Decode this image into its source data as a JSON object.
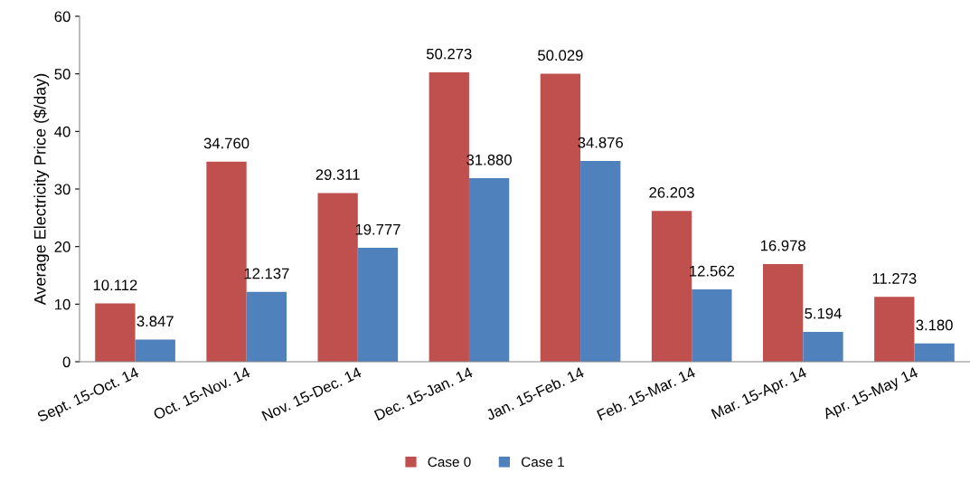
{
  "chart_data": {
    "type": "bar",
    "ylabel": "Average Electricity Price ($/day)",
    "categories": [
      "Sept. 15-Oct. 14",
      "Oct. 15-Nov. 14",
      "Nov. 15-Dec. 14",
      "Dec. 15-Jan. 14",
      "Jan. 15-Feb. 14",
      "Feb. 15-Mar. 14",
      "Mar. 15-Apr. 14",
      "Apr. 15-May 14"
    ],
    "series": [
      {
        "name": "Case 0",
        "color": "#c0504d",
        "values": [
          10.112,
          34.76,
          29.311,
          50.273,
          50.029,
          26.203,
          16.978,
          11.273
        ],
        "value_labels": [
          "10.112",
          "34.760",
          "29.311",
          "50.273",
          "50.029",
          "26.203",
          "16.978",
          "11.273"
        ]
      },
      {
        "name": "Case 1",
        "color": "#4f81bd",
        "values": [
          3.847,
          12.137,
          19.777,
          31.88,
          34.876,
          12.562,
          5.194,
          3.18
        ],
        "value_labels": [
          "3.847",
          "12.137",
          "19.777",
          "31.880",
          "34.876",
          "12.562",
          "5.194",
          "3.180"
        ]
      }
    ],
    "ylim": [
      0,
      60
    ],
    "yticks": [
      0,
      10,
      20,
      30,
      40,
      50,
      60
    ],
    "grid": false,
    "legend": "bottom"
  }
}
